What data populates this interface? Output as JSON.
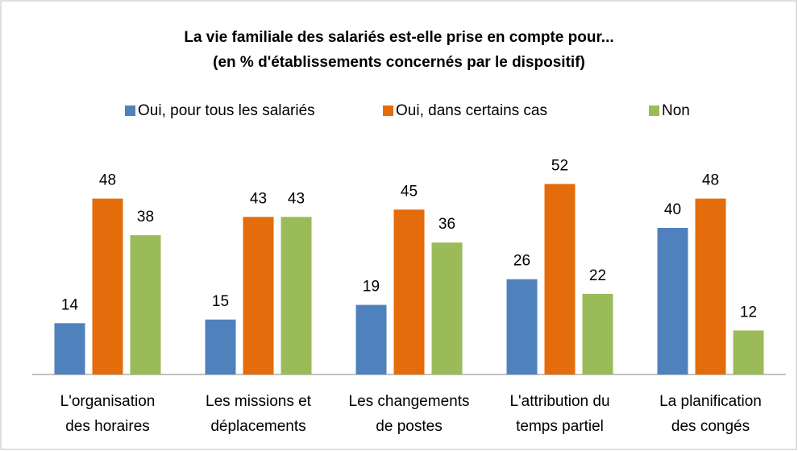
{
  "chart_data": {
    "type": "bar",
    "title": [
      "La vie familiale des salariés est-elle prise en compte pour...",
      "(en % d'établissements concernés par le dispositif)"
    ],
    "categories": [
      [
        "L'organisation",
        "des horaires"
      ],
      [
        "Les missions et",
        "déplacements"
      ],
      [
        "Les changements",
        "de postes"
      ],
      [
        "L'attribution du",
        "temps partiel"
      ],
      [
        "La planification",
        "des congés"
      ]
    ],
    "series": [
      {
        "name": "Oui, pour tous les salariés",
        "color": "#4f81bd",
        "values": [
          14,
          15,
          19,
          26,
          40
        ]
      },
      {
        "name": "Oui, dans certains cas",
        "color": "#e46c0a",
        "values": [
          48,
          43,
          45,
          52,
          48
        ]
      },
      {
        "name": "Non",
        "color": "#9bbb59",
        "values": [
          38,
          43,
          36,
          22,
          12
        ]
      }
    ],
    "ylim": [
      0,
      60
    ],
    "legend": "top"
  }
}
